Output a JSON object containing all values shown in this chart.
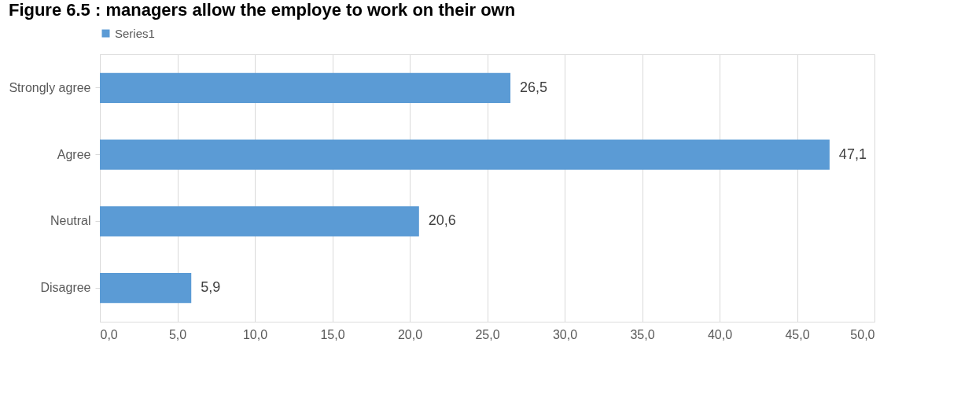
{
  "chart_data": {
    "type": "bar",
    "orientation": "horizontal",
    "title": "Figure 6.5 : managers allow the employe to work on their own",
    "categories": [
      "Strongly agree",
      "Agree",
      "Neutral",
      "Disagree"
    ],
    "series": [
      {
        "name": "Series1",
        "color": "#5b9bd5",
        "values": [
          26.5,
          47.1,
          20.6,
          5.9
        ]
      }
    ],
    "value_labels": [
      "26,5",
      "47,1",
      "20,6",
      "5,9"
    ],
    "xlim": [
      0,
      50
    ],
    "xticks": [
      {
        "value": 0,
        "label": "0,0"
      },
      {
        "value": 5,
        "label": "5,0"
      },
      {
        "value": 10,
        "label": "10,0"
      },
      {
        "value": 15,
        "label": "15,0"
      },
      {
        "value": 20,
        "label": "20,0"
      },
      {
        "value": 25,
        "label": "25,0"
      },
      {
        "value": 30,
        "label": "30,0"
      },
      {
        "value": 35,
        "label": "35,0"
      },
      {
        "value": 40,
        "label": "40,0"
      },
      {
        "value": 45,
        "label": "45,0"
      },
      {
        "value": 50,
        "label": "50,0"
      }
    ],
    "grid": "x",
    "legend": "top"
  }
}
